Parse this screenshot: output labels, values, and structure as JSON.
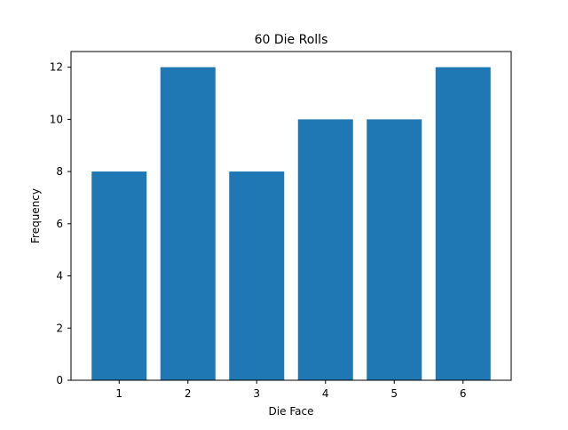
{
  "chart_data": {
    "type": "bar",
    "title": "60 Die Rolls",
    "xlabel": "Die Face",
    "ylabel": "Frequency",
    "categories": [
      "1",
      "2",
      "3",
      "4",
      "5",
      "6"
    ],
    "values": [
      8,
      12,
      8,
      10,
      10,
      12
    ],
    "ylim": [
      0,
      12.6
    ],
    "yticks": [
      0,
      2,
      4,
      6,
      8,
      10,
      12
    ],
    "grid": false,
    "bar_color": "#1f77b4"
  }
}
